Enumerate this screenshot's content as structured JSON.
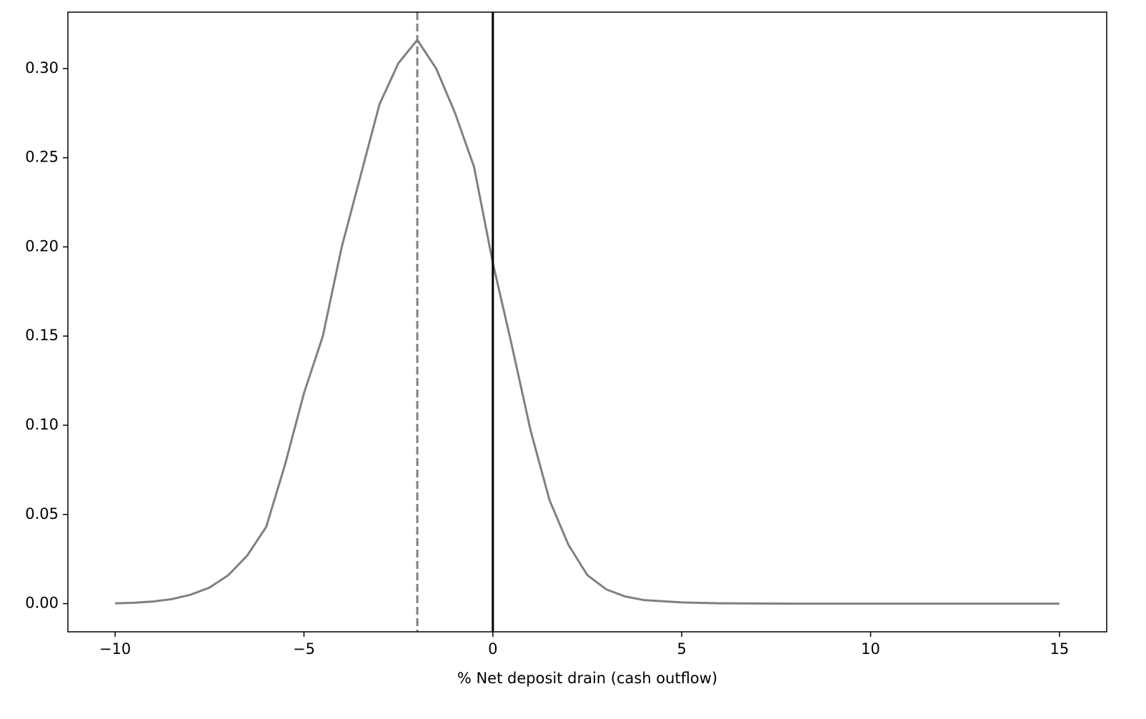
{
  "chart_data": {
    "type": "line",
    "x_label": "% Net deposit drain (cash outflow)",
    "x": [
      -10,
      -9.5,
      -9,
      -8.5,
      -8,
      -7.5,
      -7,
      -6.5,
      -6,
      -5.5,
      -5,
      -4.5,
      -4,
      -3.5,
      -3,
      -2.5,
      -2,
      -1.5,
      -1,
      -0.5,
      0,
      0.5,
      1,
      1.5,
      2,
      2.5,
      3,
      3.5,
      4,
      5,
      6,
      7,
      8,
      10,
      12,
      15
    ],
    "series": [
      {
        "color": "#808080",
        "values": [
          0.0002,
          0.0005,
          0.0012,
          0.0025,
          0.005,
          0.009,
          0.016,
          0.027,
          0.043,
          0.078,
          0.118,
          0.15,
          0.2,
          0.24,
          0.28,
          0.303,
          0.316,
          0.3,
          0.275,
          0.245,
          0.191,
          0.145,
          0.097,
          0.058,
          0.033,
          0.016,
          0.008,
          0.004,
          0.002,
          0.0007,
          0.0002,
          0.0001,
          0,
          0,
          0,
          0
        ]
      }
    ],
    "vlines": [
      {
        "value": -2,
        "color": "#808080",
        "style": "dashed"
      },
      {
        "value": 0,
        "color": "#000000",
        "style": "solid"
      }
    ],
    "xlim": [
      -11.25,
      16.25
    ],
    "ylim": [
      -0.0158,
      0.3316
    ],
    "xticks": [
      {
        "value": -10,
        "label": "−10"
      },
      {
        "value": -5,
        "label": "−5"
      },
      0,
      5,
      10,
      15
    ],
    "yticks": [
      {
        "value": 0,
        "label": "0.00"
      },
      {
        "value": 0.05,
        "label": "0.05"
      },
      {
        "value": 0.1,
        "label": "0.10"
      },
      {
        "value": 0.15,
        "label": "0.15"
      },
      {
        "value": 0.2,
        "label": "0.20"
      },
      {
        "value": 0.25,
        "label": "0.25"
      },
      {
        "value": 0.3,
        "label": "0.30"
      }
    ],
    "grid": false
  }
}
